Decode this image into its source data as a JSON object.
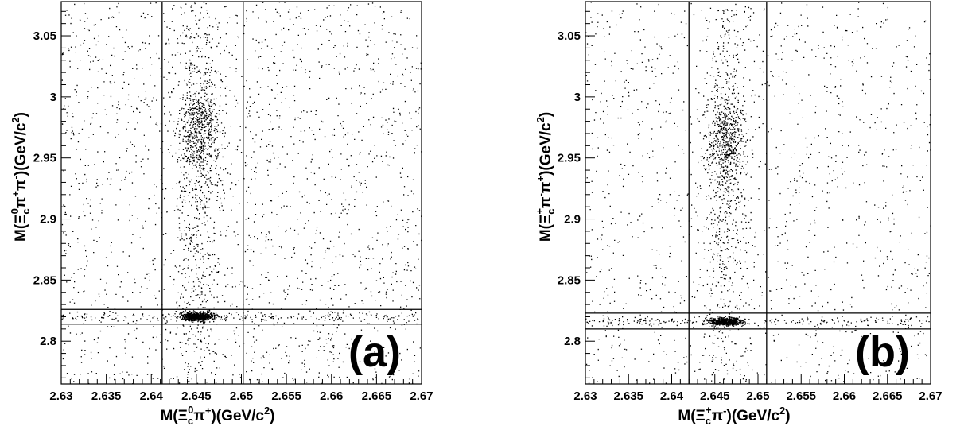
{
  "chart_data": [
    {
      "type": "scatter",
      "panel_label": "(a)",
      "xlabel": "M(Ξc0π+)(GeV/c2)",
      "ylabel": "M(Ξc0π+π-)(GeV/c2)",
      "xlabel_parts": {
        "prefix": "M(Ξ",
        "sub": "c",
        "sup": "0",
        "mid": "π",
        "sup2": "+",
        "suffix": ")(GeV/c",
        "unit_sup": "2",
        "end": ")"
      },
      "ylabel_parts": {
        "prefix": "M(Ξ",
        "sub": "c",
        "sup": "0",
        "mid": "π",
        "sup2": "+",
        "mid2": "π",
        "sup3": "-",
        "suffix": ")(GeV/c",
        "unit_sup": "2",
        "end": ")"
      },
      "xlim": [
        2.63,
        2.67
      ],
      "ylim": [
        2.765,
        3.078
      ],
      "x_ticks": [
        "2.63",
        "2.635",
        "2.64",
        "2.645",
        "2.65",
        "2.655",
        "2.66",
        "2.665",
        "2.67"
      ],
      "y_ticks": [
        "2.8",
        "2.85",
        "2.9",
        "2.95",
        "3",
        "3.05"
      ],
      "vertical_cut_lines": [
        2.6412,
        2.6502
      ],
      "horizontal_cut_lines": [
        2.814,
        2.826
      ],
      "clusters": [
        {
          "x": 2.6452,
          "y": 2.8205,
          "sx": 0.0009,
          "sy": 0.0017,
          "n": 650
        },
        {
          "x": 2.6452,
          "y": 2.972,
          "sx": 0.0011,
          "sy": 0.02,
          "n": 520
        },
        {
          "x": 2.6452,
          "y": 2.93,
          "sx": 0.0013,
          "sy": 0.11,
          "n": 700
        }
      ],
      "horizontal_band": {
        "y": 2.8205,
        "sy": 0.0022,
        "n": 230
      },
      "background_points": 1900
    },
    {
      "type": "scatter",
      "panel_label": "(b)",
      "xlabel": "M(Ξc+π-)(GeV/c2)",
      "ylabel": "M(Ξc+π-π+)(GeV/c2)",
      "xlabel_parts": {
        "prefix": "M(Ξ",
        "sub": "c",
        "sup": "+",
        "mid": "π",
        "sup2": "-",
        "suffix": ")(GeV/c",
        "unit_sup": "2",
        "end": ")"
      },
      "ylabel_parts": {
        "prefix": "M(Ξ",
        "sub": "c",
        "sup": "+",
        "mid": "π",
        "sup2": "-",
        "mid2": "π",
        "sup3": "+",
        "suffix": ")(GeV/c",
        "unit_sup": "2",
        "end": ")"
      },
      "xlim": [
        2.63,
        2.67
      ],
      "ylim": [
        2.765,
        3.078
      ],
      "x_ticks": [
        "2.63",
        "2.635",
        "2.64",
        "2.645",
        "2.65",
        "2.655",
        "2.66",
        "2.665",
        "2.67"
      ],
      "y_ticks": [
        "2.8",
        "2.85",
        "2.9",
        "2.95",
        "3",
        "3.05"
      ],
      "vertical_cut_lines": [
        2.642,
        2.651
      ],
      "horizontal_cut_lines": [
        2.81,
        2.823
      ],
      "clusters": [
        {
          "x": 2.6462,
          "y": 2.8165,
          "sx": 0.0009,
          "sy": 0.0016,
          "n": 620
        },
        {
          "x": 2.6462,
          "y": 2.965,
          "sx": 0.0011,
          "sy": 0.02,
          "n": 460
        },
        {
          "x": 2.6462,
          "y": 2.93,
          "sx": 0.0013,
          "sy": 0.11,
          "n": 650
        }
      ],
      "horizontal_band": {
        "y": 2.8165,
        "sy": 0.002,
        "n": 220
      },
      "background_points": 1300
    }
  ]
}
